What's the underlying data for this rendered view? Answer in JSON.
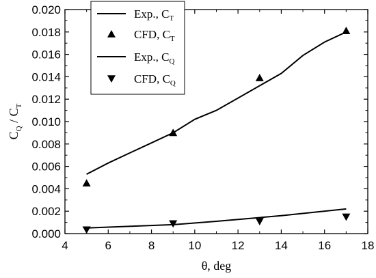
{
  "chart_data": {
    "type": "line",
    "xlabel": "θ, deg",
    "ylabel": {
      "main": "C",
      "sub1": "Q",
      "sep": " / C",
      "sub2": "T"
    },
    "xlim": [
      4,
      18
    ],
    "ylim": [
      0,
      0.02
    ],
    "xticks": [
      4,
      6,
      8,
      10,
      12,
      14,
      16,
      18
    ],
    "xtick_labels": [
      "4",
      "6",
      "8",
      "10",
      "12",
      "14",
      "16",
      "18"
    ],
    "yticks": [
      0,
      0.002,
      0.004,
      0.006,
      0.008,
      0.01,
      0.012,
      0.014,
      0.016,
      0.018,
      0.02
    ],
    "ytick_labels": [
      "0.000",
      "0.002",
      "0.004",
      "0.006",
      "0.008",
      "0.010",
      "0.012",
      "0.014",
      "0.016",
      "0.018",
      "0.020"
    ],
    "grid": false,
    "legend_position": "top-left",
    "series": [
      {
        "name": "Exp., C_T",
        "label": "Exp., C",
        "sub": "T",
        "style": "line",
        "color": "#000000",
        "x": [
          5,
          6,
          7,
          8,
          9,
          10,
          11,
          12,
          13,
          14,
          15,
          16,
          17
        ],
        "y": [
          0.0053,
          0.0063,
          0.0072,
          0.0081,
          0.009,
          0.0102,
          0.011,
          0.0121,
          0.0132,
          0.0143,
          0.0159,
          0.0171,
          0.018
        ]
      },
      {
        "name": "CFD, C_T",
        "label": "CFD, C",
        "sub": "T",
        "style": "marker",
        "marker": "triangle-up",
        "color": "#000000",
        "x": [
          5,
          9,
          13,
          17
        ],
        "y": [
          0.0045,
          0.009,
          0.0139,
          0.0181
        ]
      },
      {
        "name": "Exp., C_Q",
        "label": "Exp., C",
        "sub": "Q",
        "style": "line",
        "color": "#000000",
        "x": [
          5,
          9,
          11,
          14,
          17
        ],
        "y": [
          0.0005,
          0.0008,
          0.0011,
          0.0016,
          0.0022
        ]
      },
      {
        "name": "CFD, C_Q",
        "label": "CFD, C",
        "sub": "Q",
        "style": "marker",
        "marker": "triangle-down",
        "color": "#000000",
        "x": [
          5,
          9,
          13,
          17
        ],
        "y": [
          0.00035,
          0.0009,
          0.0011,
          0.0015
        ]
      }
    ]
  }
}
